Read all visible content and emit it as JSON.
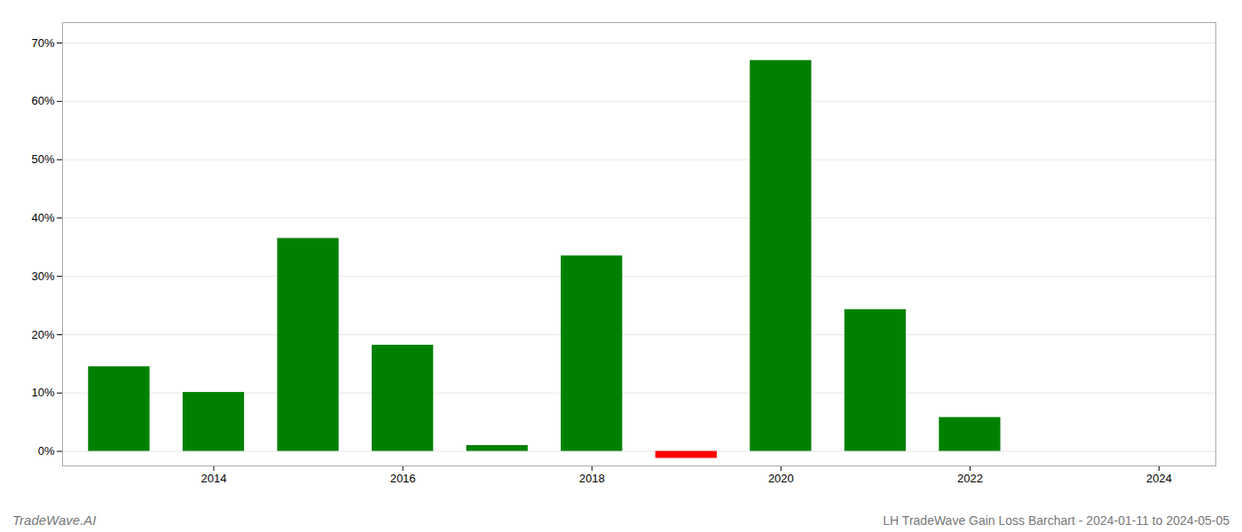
{
  "chart_data": {
    "type": "bar",
    "title": "LH TradeWave Gain Loss Barchart - 2024-01-11 to 2024-05-05",
    "annotations": [
      "TradeWave.AI"
    ],
    "x": [
      2013,
      2014,
      2015,
      2016,
      2017,
      2018,
      2019,
      2020,
      2021,
      2022,
      2023
    ],
    "values": [
      0.145,
      0.101,
      0.365,
      0.182,
      0.01,
      0.335,
      -0.012,
      0.67,
      0.243,
      0.058,
      0.0
    ],
    "colors": [
      "#008000",
      "#008000",
      "#008000",
      "#008000",
      "#008000",
      "#008000",
      "#ff0000",
      "#008000",
      "#008000",
      "#008000",
      "#008000"
    ],
    "xlim": [
      2012.4,
      2024.6
    ],
    "xticks": [
      2014,
      2016,
      2018,
      2020,
      2022,
      2024
    ],
    "ylim": [
      -0.025,
      0.735
    ],
    "yticks": [
      {
        "value": 0.0,
        "label": "0%"
      },
      {
        "value": 0.1,
        "label": "10%"
      },
      {
        "value": 0.2,
        "label": "20%"
      },
      {
        "value": 0.3,
        "label": "30%"
      },
      {
        "value": 0.4,
        "label": "40%"
      },
      {
        "value": 0.5,
        "label": "50%"
      },
      {
        "value": 0.6,
        "label": "60%"
      },
      {
        "value": 0.7,
        "label": "70%"
      }
    ],
    "grid": true
  }
}
